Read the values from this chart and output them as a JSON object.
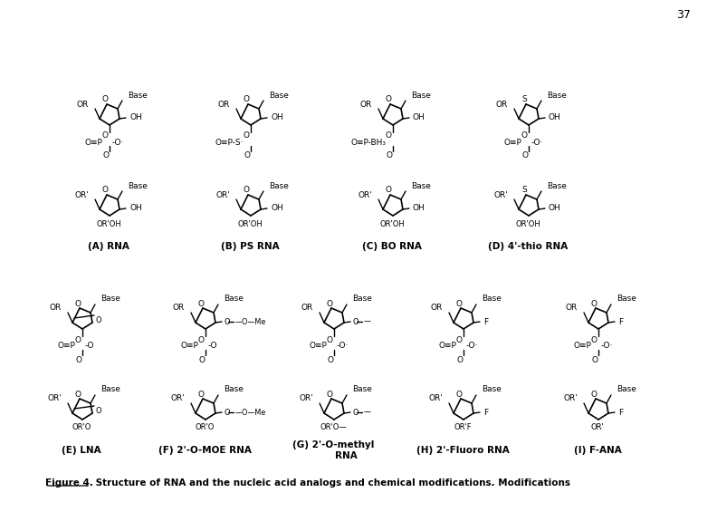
{
  "title": "Figure 4. Structure of RNA and the nucleic acid analogs and chemical modifications.",
  "page_number": "37",
  "background_color": "#ffffff",
  "text_color": "#000000",
  "fig_width": 7.92,
  "fig_height": 5.65,
  "row1_labels": [
    "(A) RNA",
    "(B) PS RNA",
    "(C) BO RNA",
    "(D) 4'-thio RNA"
  ],
  "row2_labels": [
    "(E) LNA",
    "(F) 2'-O-MOE RNA",
    "(G) 2'-O-methyl RNA",
    "(H) 2'-Fluoro RNA",
    "(I) F-ANA"
  ],
  "caption_bold": "Figure 4.",
  "caption_rest": "  Structure of RNA and the nucleic acid analogs and chemical modifications."
}
